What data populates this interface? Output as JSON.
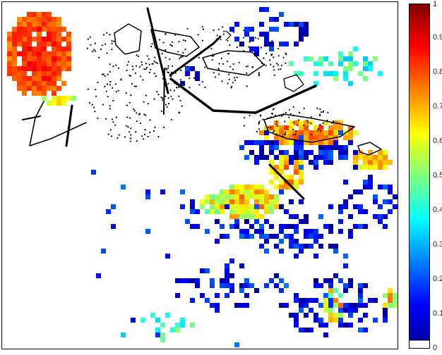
{
  "chart_data": {
    "type": "heatmap",
    "title": "",
    "xlabel": "",
    "ylabel": "",
    "colormap": "jet",
    "clim": [
      0,
      1
    ],
    "colorbar_ticks": [
      "0",
      "0.1",
      "0.2",
      "0.3",
      "0.4",
      "0.5",
      "0.6",
      "0.7",
      "0.8",
      "0.9",
      "1"
    ],
    "background_color": "#ffffff",
    "overlay_color": "#000000",
    "approx_regions": [
      {
        "region": "upper-left",
        "value": 0.85
      },
      {
        "region": "upper-left edge",
        "value": 0.65
      },
      {
        "region": "center-right band",
        "value": 0.75
      },
      {
        "region": "right-middle",
        "value": 0.72
      },
      {
        "region": "center",
        "value": 0.68
      },
      {
        "region": "center-left",
        "value": 0.62
      },
      {
        "region": "lower-right",
        "value": 0.66
      },
      {
        "region": "blue fringe areas",
        "value": 0.12
      },
      {
        "region": "cyan fringe areas",
        "value": 0.42
      }
    ]
  }
}
